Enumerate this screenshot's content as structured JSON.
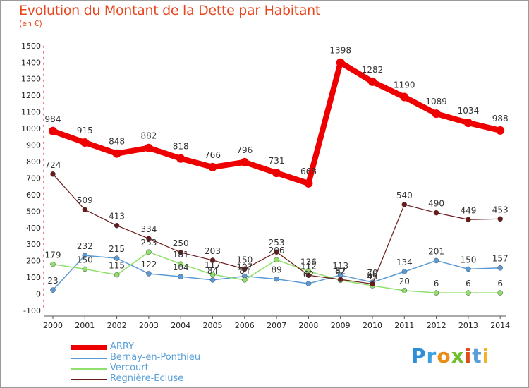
{
  "title": "Evolution du Montant de la Dette par Habitant",
  "unit": "(en €)",
  "brand": {
    "letters": [
      "P",
      "r",
      "o",
      "x",
      "i",
      "t",
      "i"
    ],
    "colors": [
      "#2f8fd6",
      "#3aa0e0",
      "#e88c1a",
      "#6fbf2a",
      "#e04a1f",
      "#5aa0d8",
      "#f0b42a"
    ]
  },
  "chart_data": {
    "type": "line",
    "x": [
      2000,
      2001,
      2002,
      2003,
      2004,
      2005,
      2006,
      2007,
      2008,
      2009,
      2010,
      2011,
      2012,
      2013,
      2014
    ],
    "ylim": [
      -100,
      1500
    ],
    "yticks": [
      -100,
      0,
      100,
      200,
      300,
      400,
      500,
      600,
      700,
      800,
      900,
      1000,
      1100,
      1200,
      1300,
      1400,
      1500
    ],
    "grid": false,
    "legend_position": "bottom-left",
    "series": [
      {
        "name": "ARRY",
        "color": "#ee0000",
        "width": 8,
        "marker": 6,
        "values": [
          984,
          915,
          848,
          882,
          818,
          766,
          796,
          731,
          668,
          1398,
          1282,
          1190,
          1089,
          1034,
          988
        ]
      },
      {
        "name": "Bernay-en-Ponthieu",
        "color": "#5b9bd5",
        "width": 1.5,
        "marker": 3.5,
        "values": [
          23,
          232,
          215,
          122,
          104,
          84,
          107,
          89,
          62,
          113,
          70,
          134,
          201,
          150,
          157
        ]
      },
      {
        "name": "Vercourt",
        "color": "#8fe06a",
        "width": 1.5,
        "marker": 3.5,
        "values": [
          179,
          150,
          115,
          253,
          181,
          117,
          84,
          206,
          136,
          82,
          49,
          20,
          6,
          6,
          6
        ]
      },
      {
        "name": "Regnière-Écluse",
        "color": "#6b1a1a",
        "width": 1.2,
        "marker": 3.5,
        "values": [
          724,
          509,
          413,
          334,
          250,
          203,
          150,
          253,
          112,
          87,
          60,
          540,
          490,
          449,
          453
        ]
      }
    ]
  }
}
